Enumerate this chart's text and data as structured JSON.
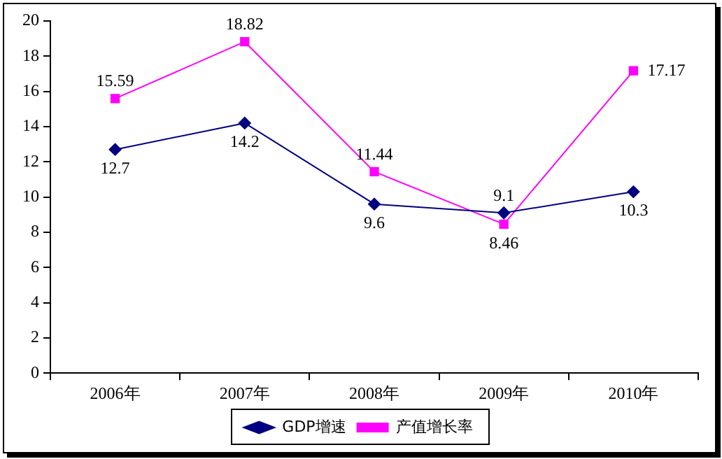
{
  "chart_data": {
    "type": "line",
    "categories": [
      "2006年",
      "2007年",
      "2008年",
      "2009年",
      "2010年"
    ],
    "series": [
      {
        "name": "GDP增速",
        "color": "#000080",
        "marker": "diamond",
        "values": [
          12.7,
          14.2,
          9.6,
          9.1,
          10.3
        ]
      },
      {
        "name": "产值增长率",
        "color": "#ff00ff",
        "marker": "square",
        "values": [
          15.59,
          18.82,
          11.44,
          8.46,
          17.17
        ]
      }
    ],
    "ylim": [
      0,
      20
    ],
    "yticks": [
      0,
      2,
      4,
      6,
      8,
      10,
      12,
      14,
      16,
      18,
      20
    ],
    "grid": false,
    "legend": "bottom",
    "data_labels": true
  }
}
